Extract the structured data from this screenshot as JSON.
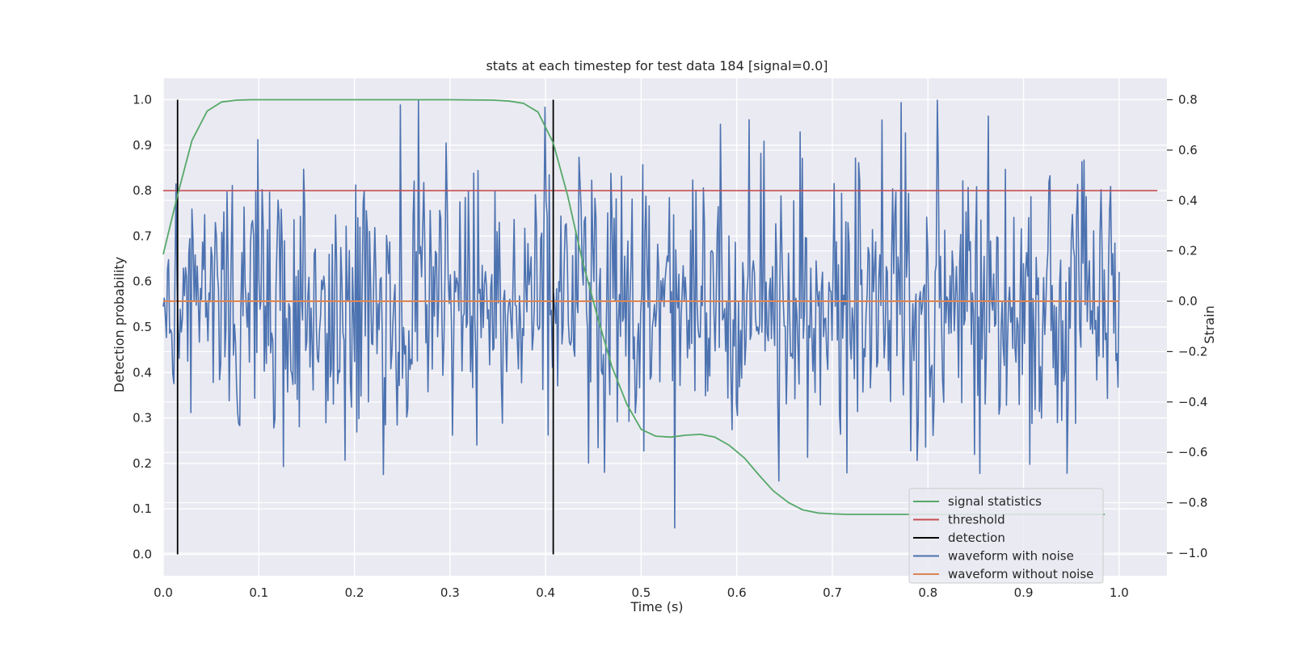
{
  "chart_data": {
    "type": "line",
    "title": "stats at each timestep for test data 184 [signal=0.0]",
    "xlabel": "Time (s)",
    "ylabel": "Detection probability",
    "y2label": "Strain",
    "xlim": [
      0.0,
      1.05
    ],
    "ylim": [
      -0.047,
      1.047
    ],
    "y2lim": [
      -1.09,
      0.885
    ],
    "xticks": [
      "0.0",
      "0.1",
      "0.2",
      "0.3",
      "0.4",
      "0.5",
      "0.6",
      "0.7",
      "0.8",
      "0.9",
      "1.0"
    ],
    "xtick_values": [
      0.0,
      0.1,
      0.2,
      0.3,
      0.4,
      0.5,
      0.6,
      0.7,
      0.8,
      0.9,
      1.0
    ],
    "yticks": [
      "0.0",
      "0.1",
      "0.2",
      "0.3",
      "0.4",
      "0.5",
      "0.6",
      "0.7",
      "0.8",
      "0.9",
      "1.0"
    ],
    "ytick_values": [
      0.0,
      0.1,
      0.2,
      0.3,
      0.4,
      0.5,
      0.6,
      0.7,
      0.8,
      0.9,
      1.0
    ],
    "y2ticks": [
      "−1.0",
      "−0.8",
      "−0.6",
      "−0.4",
      "−0.2",
      "0.0",
      "0.2",
      "0.4",
      "0.6",
      "0.8"
    ],
    "y2tick_values": [
      -1.0,
      -0.8,
      -0.6,
      -0.4,
      -0.2,
      0.0,
      0.2,
      0.4,
      0.6,
      0.8
    ],
    "colors": {
      "signal_statistics": "#55a868",
      "threshold": "#c44e52",
      "detection": "#000000",
      "waveform_with_noise": "#4c72b0",
      "waveform_without_noise": "#dd8452",
      "axes_bg": "#eaeaf2",
      "grid": "#ffffff"
    },
    "series": [
      {
        "name": "signal statistics",
        "axis": "left",
        "x": [
          0.0,
          0.015,
          0.03,
          0.046,
          0.061,
          0.077,
          0.092,
          0.108,
          0.2,
          0.3,
          0.345,
          0.362,
          0.377,
          0.392,
          0.408,
          0.423,
          0.438,
          0.454,
          0.469,
          0.485,
          0.5,
          0.515,
          0.531,
          0.546,
          0.562,
          0.577,
          0.592,
          0.608,
          0.623,
          0.638,
          0.654,
          0.669,
          0.685,
          0.7,
          0.715,
          0.75,
          0.8,
          0.85,
          0.9,
          0.95,
          0.985
        ],
        "values": [
          0.66,
          0.79,
          0.91,
          0.975,
          0.995,
          0.999,
          1.0,
          1.0,
          1.0,
          1.0,
          0.999,
          0.997,
          0.992,
          0.973,
          0.905,
          0.79,
          0.65,
          0.525,
          0.415,
          0.33,
          0.275,
          0.26,
          0.258,
          0.262,
          0.264,
          0.258,
          0.24,
          0.212,
          0.175,
          0.14,
          0.114,
          0.098,
          0.091,
          0.089,
          0.088,
          0.088,
          0.088,
          0.088,
          0.088,
          0.088,
          0.088
        ]
      },
      {
        "name": "threshold",
        "axis": "left",
        "x": [
          0.0,
          1.04
        ],
        "values": [
          0.8,
          0.8
        ]
      },
      {
        "name": "detection",
        "axis": "left",
        "type": "vlines",
        "x": [
          0.015,
          0.408
        ],
        "ymin": 0.0,
        "ymax": 1.0
      },
      {
        "name": "waveform with noise",
        "axis": "right",
        "x_start": 0.0,
        "x_end": 1.0,
        "points": 900,
        "seed": 184,
        "amplitude_std": 0.28,
        "range": [
          -1.0,
          0.8
        ]
      },
      {
        "name": "waveform without noise",
        "axis": "right",
        "x": [
          0.0,
          1.0
        ],
        "values": [
          0.0,
          0.0
        ]
      }
    ],
    "legend": {
      "position": "lower right",
      "entries": [
        {
          "label": "signal statistics",
          "color": "#55a868"
        },
        {
          "label": "threshold",
          "color": "#c44e52"
        },
        {
          "label": "detection",
          "color": "#000000"
        },
        {
          "label": "waveform with noise",
          "color": "#4c72b0"
        },
        {
          "label": "waveform without noise",
          "color": "#dd8452"
        }
      ]
    }
  }
}
